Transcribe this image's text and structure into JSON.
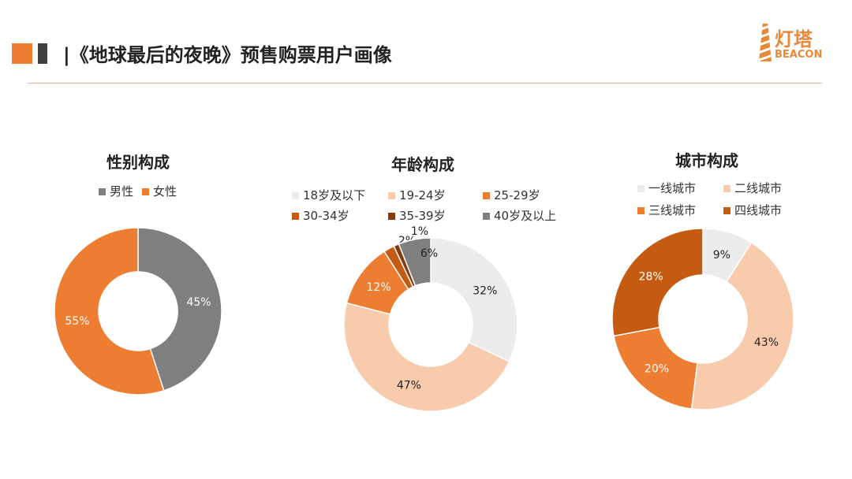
{
  "header": {
    "title": "|《地球最后的夜晚》预售购票用户画像",
    "logo_cn": "灯塔",
    "logo_en": "BEACON",
    "accent": "#ed7d31"
  },
  "chart_data": [
    {
      "type": "pie",
      "donut": true,
      "title": "性别构成",
      "categories": [
        "男性",
        "女性"
      ],
      "values": [
        45,
        55
      ],
      "colors": [
        "#7f7f7f",
        "#ed7d31"
      ],
      "data_labels": [
        "45%",
        "55%"
      ],
      "legend": "top"
    },
    {
      "type": "pie",
      "donut": true,
      "title": "年龄构成",
      "categories": [
        "18岁及以下",
        "19-24岁",
        "25-29岁",
        "30-34岁",
        "35-39岁",
        "40岁及以上"
      ],
      "values": [
        32,
        47,
        12,
        2,
        1,
        6
      ],
      "colors": [
        "#ececec",
        "#f7cbac",
        "#ed7d31",
        "#c55a11",
        "#843c0c",
        "#7f7f7f"
      ],
      "data_labels": [
        "32%",
        "47%",
        "12%",
        "2%",
        "1%",
        "6%"
      ],
      "legend": "top"
    },
    {
      "type": "pie",
      "donut": true,
      "title": "城市构成",
      "categories": [
        "一线城市",
        "二线城市",
        "三线城市",
        "四线城市"
      ],
      "values": [
        9,
        43,
        20,
        28
      ],
      "colors": [
        "#ececec",
        "#f7cbac",
        "#ed7d31",
        "#c55a11"
      ],
      "data_labels": [
        "9%",
        "43%",
        "20%",
        "28%"
      ],
      "legend": "top"
    }
  ]
}
